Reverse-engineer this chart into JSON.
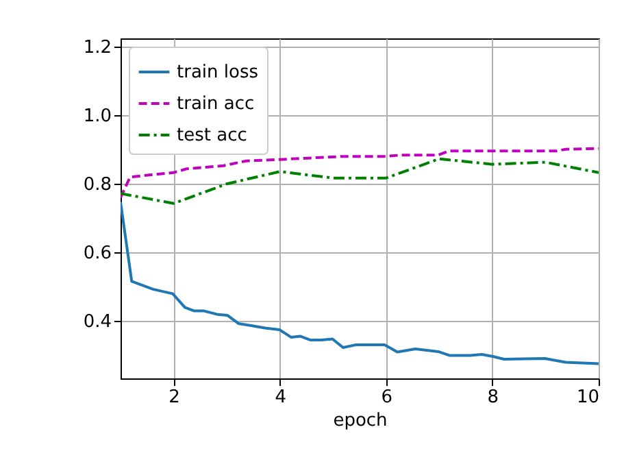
{
  "chart_data": {
    "type": "line",
    "xlabel": "epoch",
    "xlim": [
      1,
      10
    ],
    "xticks": [
      2,
      4,
      6,
      8,
      10
    ],
    "ylim": [
      0.233,
      1.224
    ],
    "yticks": [
      0.4,
      0.6,
      0.8,
      {
        "value": 1.0,
        "label": "1.0"
      },
      1.2
    ],
    "grid": true,
    "legend": "top left",
    "marker": "none",
    "series": [
      {
        "name": "train loss",
        "color": "#1f77b4",
        "line_style": "solid",
        "x": [
          1.0,
          1.21,
          1.61,
          1.98,
          2.21,
          2.38,
          2.56,
          2.81,
          3.01,
          3.22,
          3.46,
          3.72,
          3.99,
          4.21,
          4.38,
          4.57,
          4.78,
          4.99,
          5.19,
          5.43,
          5.97,
          6.21,
          6.55,
          6.98,
          7.19,
          7.58,
          7.8,
          8.01,
          8.22,
          8.99,
          9.38,
          10.0
        ],
        "values": [
          0.747,
          0.516,
          0.493,
          0.48,
          0.44,
          0.43,
          0.43,
          0.42,
          0.417,
          0.393,
          0.387,
          0.38,
          0.375,
          0.353,
          0.356,
          0.345,
          0.345,
          0.348,
          0.323,
          0.331,
          0.331,
          0.31,
          0.319,
          0.311,
          0.3,
          0.3,
          0.303,
          0.297,
          0.289,
          0.291,
          0.28,
          0.276
        ]
      },
      {
        "name": "train acc",
        "color": "#bf00bf",
        "line_style": "dashed",
        "x": [
          1.0,
          1.18,
          2.0,
          2.25,
          2.94,
          3.37,
          3.99,
          5.18,
          5.97,
          6.29,
          6.98,
          7.19,
          9.21,
          9.38,
          10.0
        ],
        "values": [
          0.76,
          0.82,
          0.833,
          0.844,
          0.853,
          0.867,
          0.871,
          0.88,
          0.88,
          0.884,
          0.884,
          0.896,
          0.896,
          0.901,
          0.903
        ]
      },
      {
        "name": "test acc",
        "color": "#008000",
        "line_style": "dashdot",
        "x": [
          1,
          2,
          3,
          4,
          5,
          6,
          7,
          8,
          9,
          10
        ],
        "values": [
          0.772,
          0.743,
          0.8,
          0.836,
          0.817,
          0.817,
          0.873,
          0.857,
          0.863,
          0.833
        ]
      }
    ]
  }
}
